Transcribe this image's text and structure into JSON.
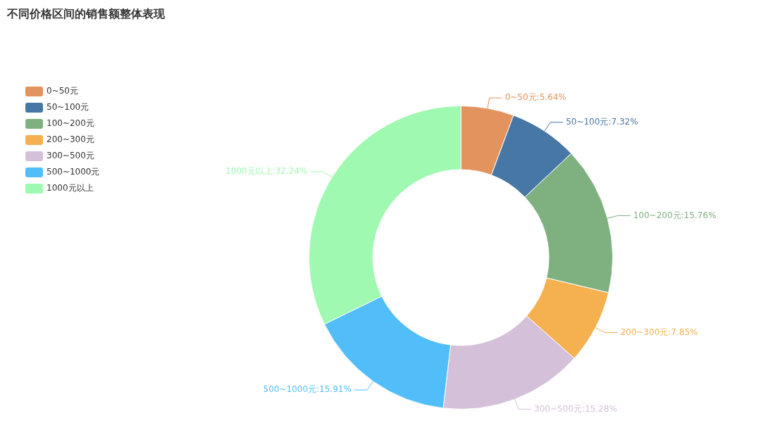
{
  "chart_data": {
    "type": "donut",
    "title": "不同价格区间的销售额整体表现",
    "categories": [
      "0~50元",
      "50~100元",
      "100~200元",
      "200~300元",
      "300~500元",
      "500~1000元",
      "1000元以上"
    ],
    "values": [
      5.64,
      7.32,
      15.76,
      7.85,
      15.28,
      15.91,
      32.24
    ],
    "colors": [
      "#e3935d",
      "#4677a5",
      "#7fb080",
      "#f5b04f",
      "#d5c0d9",
      "#52bef9",
      "#a0f9b0"
    ],
    "value_labels": [
      "0~50元:5.64%",
      "50~100元:7.32%",
      "100~200元:15.76%",
      "200~300元:7.85%",
      "300~500元:15.28%",
      "500~1000元:15.91%",
      "1000元以上:32.24%"
    ],
    "legend": "top left"
  }
}
